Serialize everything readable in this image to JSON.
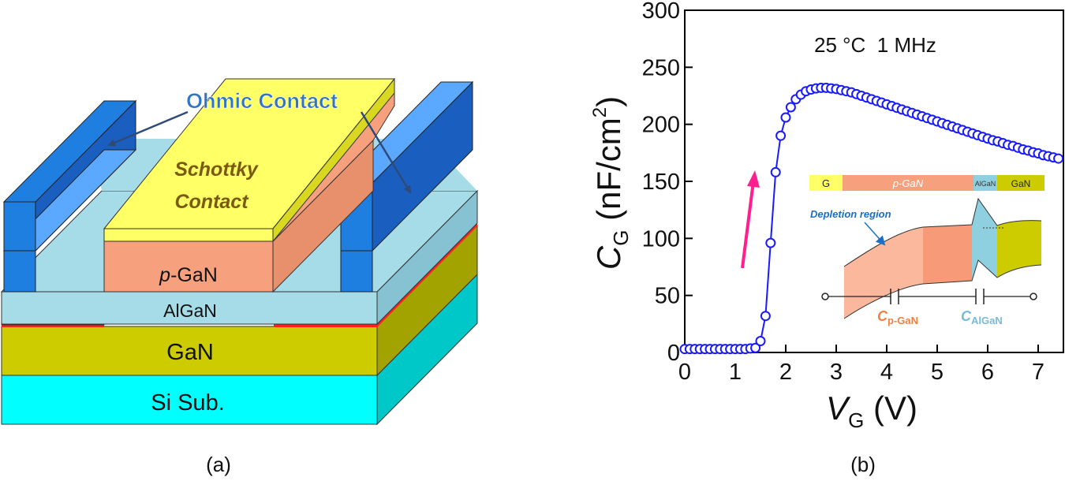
{
  "figure_a": {
    "caption": "(a)",
    "ohmic_label": "Ohmic Contact",
    "schottky_line1": "Schottky",
    "schottky_line2": "Contact",
    "pgan_italic": "p",
    "pgan_rest": "-GaN",
    "algan_label": "AlGaN",
    "gan_label": "GaN",
    "si_label": "Si Sub.",
    "colors": {
      "ohmic": "#1f7fe0",
      "schottky": "#ffff66",
      "pgan": "#f7a07e",
      "algan": "#a6dbe8",
      "gan": "#cccc00",
      "si": "#00ffff",
      "twodeg": "#ff2020",
      "label_blue": "#2f75c4",
      "label_brown": "#7a5a10"
    }
  },
  "figure_b": {
    "caption": "(b)",
    "annotation": "25 °C  1 MHz",
    "y_axis": {
      "main": "C",
      "sub": "G",
      "unit_open": " (nF/cm",
      "unit_sup": "2",
      "unit_close": ")"
    },
    "x_axis": {
      "main": "V",
      "sub": "G",
      "unit": " (V)"
    },
    "inset": {
      "band_g": "G",
      "band_pgan": "p-GaN",
      "band_algan": "AlGaN",
      "band_gan": "GaN",
      "depletion_label": "Depletion region",
      "cap_pgan_main": "C",
      "cap_pgan_sub": "p-GaN",
      "cap_algan_main": "C",
      "cap_algan_sub": "AlGaN"
    }
  },
  "chart_data": {
    "type": "scatter",
    "title": "",
    "xlabel": "VG (V)",
    "ylabel": "CG (nF/cm2)",
    "xlim": [
      0,
      7.5
    ],
    "ylim": [
      0,
      300
    ],
    "xticks": [
      "0",
      "1",
      "2",
      "3",
      "4",
      "5",
      "6",
      "7"
    ],
    "yticks": [
      "0",
      "50",
      "100",
      "150",
      "200",
      "250",
      "300"
    ],
    "grid": false,
    "marker": "open-circle",
    "color": "#1a1aff",
    "arrow_color": "#ff1f8f",
    "x": [
      0,
      0.1,
      0.2,
      0.3,
      0.4,
      0.5,
      0.6,
      0.7,
      0.8,
      0.9,
      1.0,
      1.1,
      1.2,
      1.3,
      1.4,
      1.5,
      1.6,
      1.7,
      1.8,
      1.9,
      2.0,
      2.1,
      2.2,
      2.3,
      2.4,
      2.5,
      2.6,
      2.7,
      2.8,
      2.9,
      3.0,
      3.1,
      3.2,
      3.3,
      3.4,
      3.5,
      3.6,
      3.7,
      3.8,
      3.9,
      4.0,
      4.1,
      4.2,
      4.3,
      4.4,
      4.5,
      4.6,
      4.7,
      4.8,
      4.9,
      5.0,
      5.1,
      5.2,
      5.3,
      5.4,
      5.5,
      5.6,
      5.7,
      5.8,
      5.9,
      6.0,
      6.1,
      6.2,
      6.3,
      6.4,
      6.5,
      6.6,
      6.7,
      6.8,
      6.9,
      7.0,
      7.1,
      7.2,
      7.3,
      7.4
    ],
    "y": [
      3,
      3,
      3,
      3,
      3,
      3,
      3,
      3,
      3,
      3,
      3,
      3,
      3,
      3.5,
      4,
      10,
      32,
      96,
      158,
      190,
      206,
      215,
      222,
      226,
      229,
      230.5,
      231.5,
      232,
      232,
      231.5,
      231,
      230,
      229,
      228,
      226.5,
      225,
      223.5,
      222,
      220.5,
      219,
      217.5,
      216,
      214.5,
      213,
      211.5,
      210,
      208.5,
      207,
      205.5,
      204,
      202.5,
      201,
      199.5,
      198,
      196.5,
      195,
      193.5,
      192,
      190.5,
      189,
      187.5,
      186,
      185,
      183.5,
      182,
      181,
      179.5,
      178,
      177,
      175.5,
      174.5,
      173,
      172,
      171,
      170
    ]
  }
}
